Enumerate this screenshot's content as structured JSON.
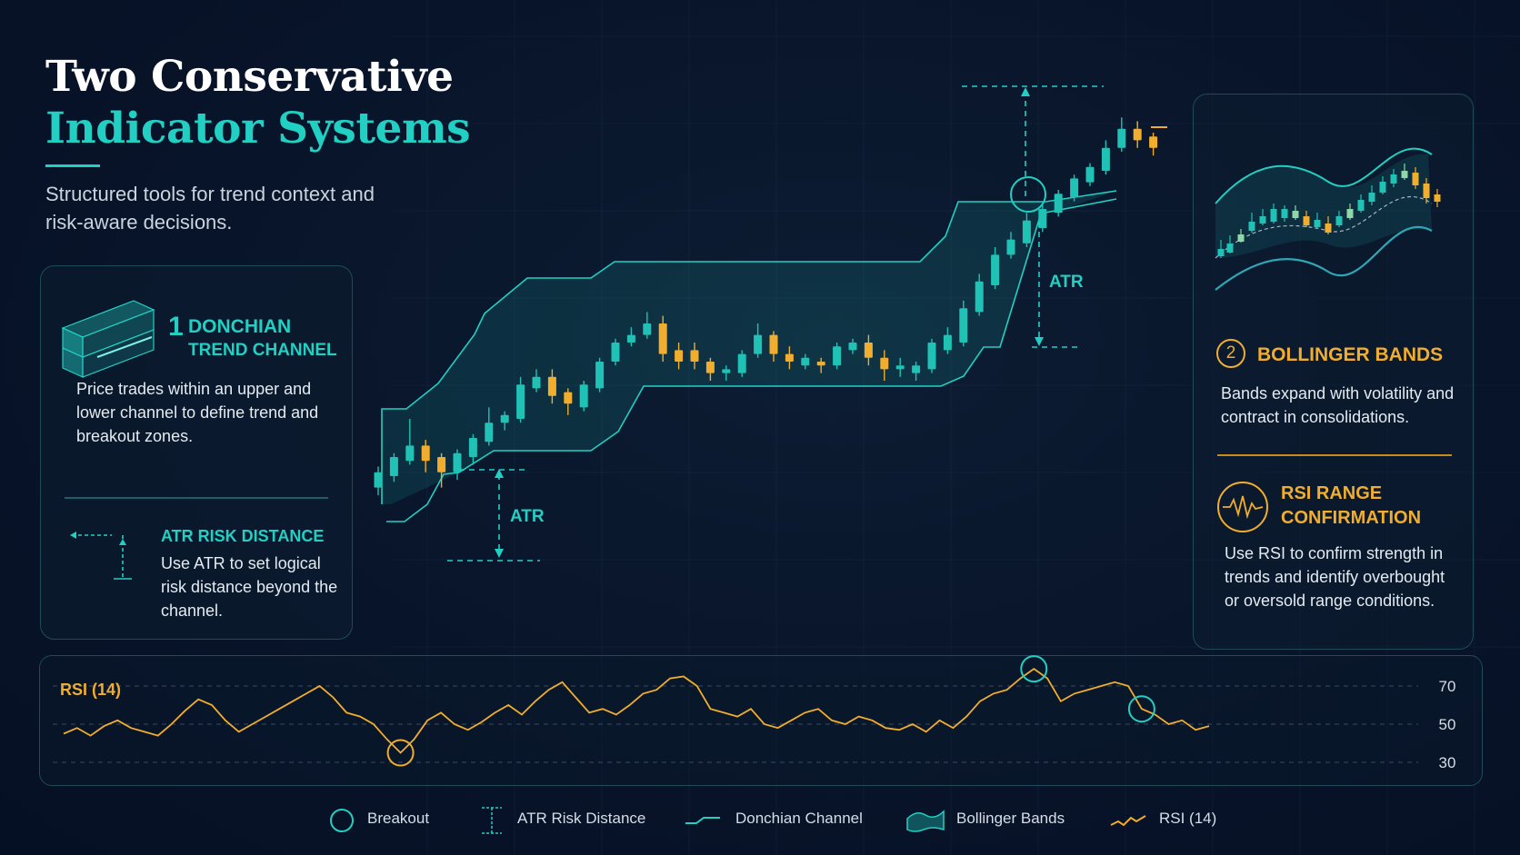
{
  "header": {
    "title_line1": "Two Conservative",
    "title_line2": "Indicator Systems",
    "subtitle": "Structured tools for trend context and risk-aware decisions."
  },
  "donchian": {
    "number": "1",
    "title_line1": "DONCHIAN",
    "title_line2": "TREND CHANNEL",
    "description": "Price trades within an upper and lower channel to define trend and breakout zones.",
    "icon": "channel-3d-icon"
  },
  "atr_risk": {
    "title": "ATR RISK DISTANCE",
    "description": "Use ATR to set logical risk distance beyond the channel.",
    "icon": "atr-distance-icon"
  },
  "bollinger": {
    "number": "2",
    "title": "BOLLINGER BANDS",
    "description": "Bands expand with volatility and contract in consolidations."
  },
  "rsi_range": {
    "title_line1": "RSI RANGE",
    "title_line2": "CONFIRMATION",
    "description": "Use RSI to confirm strength in trends and identify overbought or oversold range conditions.",
    "icon": "rsi-wave-icon"
  },
  "chart_labels": {
    "atr_upper": "ATR",
    "atr_lower": "ATR"
  },
  "colors": {
    "teal": "#22cfc3",
    "gold": "#f0ad2e",
    "background": "#08142a",
    "bullish": "#1fc2b4",
    "bearish": "#f0ad2e"
  },
  "chart_data": {
    "type": "table",
    "price_panel": {
      "candles": [
        {
          "o": 2,
          "c": 6,
          "h": 7.5,
          "l": 0
        },
        {
          "o": 5,
          "c": 10,
          "h": 11,
          "l": 3.5
        },
        {
          "o": 9,
          "c": 13,
          "h": 20,
          "l": 8
        },
        {
          "o": 13,
          "c": 9,
          "h": 14.5,
          "l": 6
        },
        {
          "o": 10,
          "c": 6,
          "h": 11,
          "l": 2
        },
        {
          "o": 6,
          "c": 11,
          "h": 12,
          "l": 4
        },
        {
          "o": 10,
          "c": 15,
          "h": 16,
          "l": 8
        },
        {
          "o": 14,
          "c": 19,
          "h": 23,
          "l": 13
        },
        {
          "o": 19,
          "c": 21,
          "h": 22,
          "l": 17
        },
        {
          "o": 20,
          "c": 29,
          "h": 31,
          "l": 19
        },
        {
          "o": 28,
          "c": 31,
          "h": 33,
          "l": 27
        },
        {
          "o": 31,
          "c": 26,
          "h": 33,
          "l": 24
        },
        {
          "o": 27,
          "c": 24,
          "h": 28,
          "l": 21
        },
        {
          "o": 23,
          "c": 29,
          "h": 30,
          "l": 22
        },
        {
          "o": 28,
          "c": 35,
          "h": 36,
          "l": 27
        },
        {
          "o": 35,
          "c": 40,
          "h": 41,
          "l": 34
        },
        {
          "o": 40,
          "c": 42,
          "h": 44,
          "l": 39
        },
        {
          "o": 42,
          "c": 45,
          "h": 48,
          "l": 41
        },
        {
          "o": 45,
          "c": 37,
          "h": 47,
          "l": 35
        },
        {
          "o": 38,
          "c": 35,
          "h": 40,
          "l": 33
        },
        {
          "o": 38,
          "c": 35,
          "h": 40,
          "l": 33
        },
        {
          "o": 35,
          "c": 32,
          "h": 36,
          "l": 30
        },
        {
          "o": 32,
          "c": 33,
          "h": 34,
          "l": 30
        },
        {
          "o": 32,
          "c": 37,
          "h": 38,
          "l": 31
        },
        {
          "o": 37,
          "c": 42,
          "h": 45,
          "l": 36
        },
        {
          "o": 42,
          "c": 37,
          "h": 43,
          "l": 35
        },
        {
          "o": 37,
          "c": 35,
          "h": 39,
          "l": 33
        },
        {
          "o": 34,
          "c": 36,
          "h": 37,
          "l": 33
        },
        {
          "o": 35,
          "c": 34,
          "h": 36,
          "l": 32
        },
        {
          "o": 34,
          "c": 39,
          "h": 40,
          "l": 33
        },
        {
          "o": 38,
          "c": 40,
          "h": 41,
          "l": 37
        },
        {
          "o": 40,
          "c": 36,
          "h": 42,
          "l": 34
        },
        {
          "o": 36,
          "c": 33,
          "h": 38,
          "l": 30
        },
        {
          "o": 33,
          "c": 34,
          "h": 36,
          "l": 31
        },
        {
          "o": 32,
          "c": 34,
          "h": 35,
          "l": 30
        },
        {
          "o": 33,
          "c": 40,
          "h": 41,
          "l": 32
        },
        {
          "o": 38,
          "c": 42,
          "h": 44,
          "l": 37
        },
        {
          "o": 40,
          "c": 49,
          "h": 51,
          "l": 39
        },
        {
          "o": 48,
          "c": 56,
          "h": 58,
          "l": 47
        },
        {
          "o": 55,
          "c": 63,
          "h": 65,
          "l": 54
        },
        {
          "o": 63,
          "c": 67,
          "h": 69,
          "l": 62
        },
        {
          "o": 66,
          "c": 72,
          "h": 74,
          "l": 65
        },
        {
          "o": 70,
          "c": 75,
          "h": 76,
          "l": 69
        },
        {
          "o": 74,
          "c": 79,
          "h": 80,
          "l": 73
        },
        {
          "o": 78,
          "c": 83,
          "h": 84,
          "l": 77
        },
        {
          "o": 82,
          "c": 86,
          "h": 87,
          "l": 81
        },
        {
          "o": 85,
          "c": 91,
          "h": 93,
          "l": 84
        },
        {
          "o": 91,
          "c": 96,
          "h": 99,
          "l": 90
        },
        {
          "o": 96,
          "c": 93,
          "h": 98,
          "l": 91
        },
        {
          "o": 94,
          "c": 91,
          "h": 95,
          "l": 89
        }
      ]
    },
    "rsi": {
      "label": "RSI (14)",
      "yticks": [
        70,
        50,
        30
      ],
      "ylim": [
        24,
        78
      ],
      "values": [
        45,
        48,
        44,
        49,
        52,
        48,
        46,
        44,
        50,
        57,
        63,
        60,
        52,
        46,
        50,
        54,
        58,
        62,
        66,
        70,
        64,
        56,
        54,
        50,
        42,
        35,
        42,
        52,
        56,
        50,
        47,
        51,
        56,
        60,
        55,
        62,
        68,
        72,
        64,
        56,
        58,
        55,
        60,
        66,
        68,
        74,
        75,
        70,
        58,
        56,
        54,
        58,
        50,
        48,
        52,
        56,
        58,
        52,
        50,
        54,
        52,
        48,
        47,
        50,
        46,
        52,
        48,
        54,
        62,
        66,
        68,
        74,
        79,
        74,
        62,
        66,
        68,
        70,
        72,
        70,
        58,
        55,
        50,
        52,
        47,
        49
      ],
      "markers": [
        {
          "index": 25,
          "kind": "low"
        },
        {
          "index": 72,
          "kind": "high"
        },
        {
          "index": 80,
          "kind": "high"
        }
      ]
    }
  },
  "legend": {
    "items": [
      {
        "label": "Breakout",
        "icon": "circle-icon"
      },
      {
        "label": "ATR Risk Distance",
        "icon": "atr-bracket-icon"
      },
      {
        "label": "Donchian Channel",
        "icon": "line-icon"
      },
      {
        "label": "Bollinger Bands",
        "icon": "band-icon"
      },
      {
        "label": "RSI (14)",
        "icon": "rsi-line-icon"
      }
    ]
  }
}
